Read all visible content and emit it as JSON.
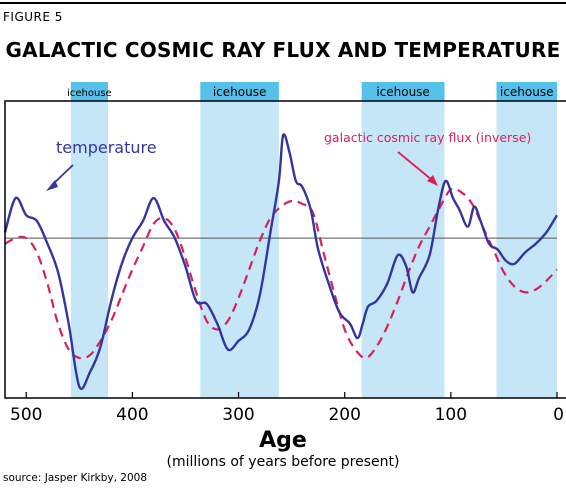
{
  "figure_label": "FIGURE 5",
  "chart_data": {
    "type": "line",
    "title": "GALACTIC COSMIC RAY FLUX AND TEMPERATURE",
    "xlabel": "Age",
    "xlabel_sub": "(millions of years before present)",
    "xlim": [
      520,
      0
    ],
    "x_ticks": [
      500,
      400,
      300,
      200,
      100,
      0
    ],
    "y_axis_visible": false,
    "reference_line": "horizontal baseline",
    "shaded_periods": [
      {
        "label": "icehouse",
        "from": 458,
        "to": 423
      },
      {
        "label": "icehouse",
        "from": 336,
        "to": 262
      },
      {
        "label": "icehouse",
        "from": 184,
        "to": 106
      },
      {
        "label": "icehouse",
        "from": 57,
        "to": 0
      }
    ],
    "series": [
      {
        "name": "temperature",
        "color": "#3535a0",
        "style": "solid",
        "x": [
          520,
          510,
          500,
          490,
          480,
          470,
          460,
          450,
          440,
          430,
          420,
          410,
          400,
          390,
          380,
          370,
          360,
          350,
          340,
          330,
          320,
          310,
          300,
          290,
          280,
          270,
          262,
          258,
          252,
          246,
          240,
          232,
          225,
          215,
          205,
          195,
          188,
          183,
          178,
          170,
          160,
          150,
          142,
          136,
          130,
          120,
          112,
          105,
          98,
          92,
          84,
          78,
          72,
          64,
          56,
          48,
          40,
          30,
          20,
          10,
          0
        ],
        "y": [
          0.1,
          0.7,
          0.4,
          0.3,
          -0.1,
          -0.6,
          -1.5,
          -2.6,
          -2.35,
          -1.9,
          -1.1,
          -0.45,
          0.0,
          0.3,
          0.7,
          0.3,
          0.0,
          -0.5,
          -1.1,
          -1.15,
          -1.5,
          -1.95,
          -1.8,
          -1.6,
          -1.0,
          0.1,
          1.0,
          1.8,
          1.5,
          1.0,
          0.9,
          0.5,
          -0.2,
          -0.8,
          -1.3,
          -1.5,
          -1.75,
          -1.5,
          -1.2,
          -1.1,
          -0.8,
          -0.3,
          -0.5,
          -0.95,
          -0.7,
          -0.3,
          0.5,
          1.0,
          0.7,
          0.5,
          0.2,
          0.55,
          0.3,
          -0.1,
          -0.2,
          -0.4,
          -0.45,
          -0.25,
          -0.1,
          0.1,
          0.4
        ]
      },
      {
        "name": "galactic cosmic ray flux (inverse)",
        "color": "#dc1f5a",
        "style": "dashed",
        "x": [
          520,
          510,
          500,
          490,
          480,
          470,
          460,
          450,
          440,
          430,
          420,
          410,
          400,
          390,
          380,
          370,
          360,
          350,
          340,
          330,
          320,
          310,
          300,
          290,
          280,
          270,
          260,
          250,
          240,
          230,
          220,
          210,
          200,
          190,
          180,
          170,
          160,
          150,
          140,
          130,
          120,
          110,
          100,
          90,
          80,
          70,
          60,
          50,
          40,
          30,
          20,
          10,
          0
        ],
        "y": [
          -0.1,
          0.0,
          0.0,
          -0.25,
          -0.8,
          -1.5,
          -1.95,
          -2.1,
          -2.05,
          -1.8,
          -1.45,
          -1.0,
          -0.55,
          -0.15,
          0.25,
          0.35,
          0.15,
          -0.35,
          -0.95,
          -1.45,
          -1.6,
          -1.45,
          -1.05,
          -0.55,
          -0.05,
          0.35,
          0.55,
          0.65,
          0.6,
          0.45,
          -0.25,
          -0.95,
          -1.6,
          -1.95,
          -2.1,
          -1.9,
          -1.55,
          -1.1,
          -0.6,
          -0.15,
          0.2,
          0.55,
          0.85,
          0.8,
          0.6,
          0.2,
          -0.2,
          -0.6,
          -0.85,
          -0.95,
          -0.9,
          -0.75,
          -0.55
        ]
      }
    ],
    "annotations": [
      {
        "text": "temperature",
        "target_series": "temperature",
        "arrow": true
      },
      {
        "text": "galactic cosmic ray flux (inverse)",
        "target_series": "galactic cosmic ray flux (inverse)",
        "arrow": true
      }
    ]
  },
  "source": "source: Jasper Kirkby, 2008"
}
